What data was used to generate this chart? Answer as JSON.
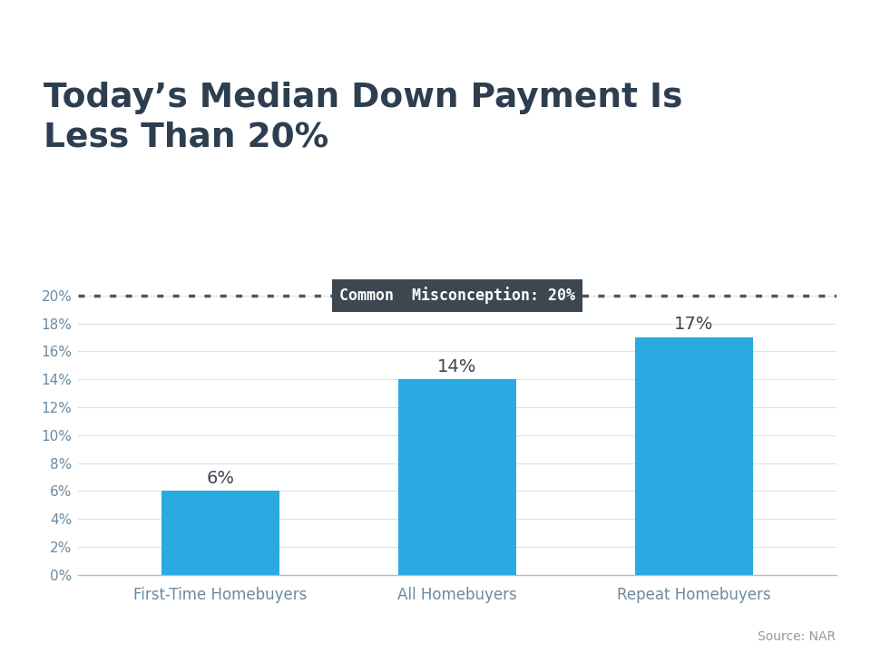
{
  "title_line1": "Today’s Median Down Payment Is",
  "title_line2": "Less Than 20%",
  "categories": [
    "First-Time Homebuyers",
    "All Homebuyers",
    "Repeat Homebuyers"
  ],
  "values": [
    6,
    14,
    17
  ],
  "bar_color": "#29ABE2",
  "misconception_value": 20,
  "misconception_label": "Common  Misconception: 20%",
  "misconception_box_color": "#3D4751",
  "misconception_text_color": "#FFFFFF",
  "dotted_line_color": "#555555",
  "ylim": [
    0,
    22
  ],
  "yticks": [
    0,
    2,
    4,
    6,
    8,
    10,
    12,
    14,
    16,
    18,
    20
  ],
  "source_text": "Source: NAR",
  "source_color": "#999999",
  "title_color": "#2D3E50",
  "tick_color": "#6B8AA0",
  "background_color": "#FFFFFF",
  "top_stripe_color": "#29ABE2",
  "value_label_color": "#3D4751",
  "value_label_fontsize": 14,
  "bar_width": 0.5
}
